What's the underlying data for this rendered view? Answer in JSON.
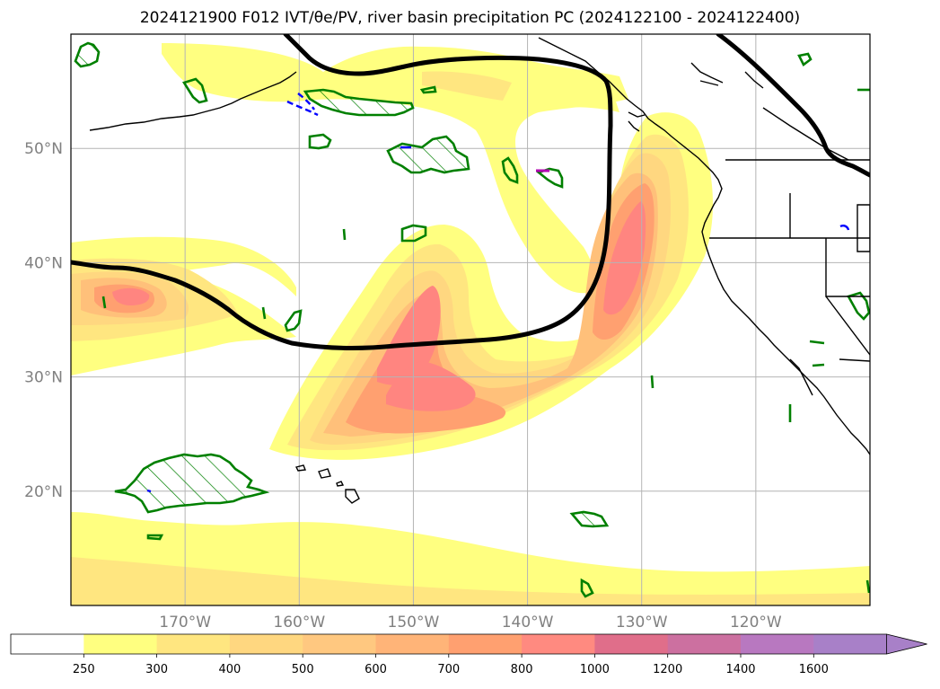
{
  "title": "2024121900 F012 IVT/θe/PV, river basin precipitation PC (2024122100 - 2024122400)",
  "map": {
    "projection": "PlateCarree",
    "lon_range_deg": [
      -180,
      -110
    ],
    "lat_range_deg": [
      10,
      60
    ],
    "background": "#ffffff",
    "gridlines": true,
    "coastlines": true,
    "state_borders": true,
    "lat_ticks": [
      {
        "lat": 20,
        "label": "20°N"
      },
      {
        "lat": 30,
        "label": "30°N"
      },
      {
        "lat": 40,
        "label": "40°N"
      },
      {
        "lat": 50,
        "label": "50°N"
      }
    ],
    "lon_ticks": [
      {
        "lon": -170,
        "label": "170°W"
      },
      {
        "lon": -160,
        "label": "160°W"
      },
      {
        "lon": -150,
        "label": "150°W"
      },
      {
        "lon": -140,
        "label": "140°W"
      },
      {
        "lon": -130,
        "label": "130°W"
      },
      {
        "lon": -120,
        "label": "120°W"
      }
    ],
    "ivt_level_colors": [
      "#ffff80",
      "#ffe680",
      "#ffd780",
      "#ffc07a",
      "#ffa070",
      "#ff8580"
    ],
    "pv_contour_color": "#008000",
    "theta_e_contour_color": "#000000",
    "negative_contour_color": "#0000ff",
    "marker_color": "#b000b0"
  },
  "colorbar": {
    "levels": [
      "250",
      "300",
      "400",
      "500",
      "600",
      "700",
      "800",
      "1000",
      "1200",
      "1400",
      "1600"
    ],
    "colors": [
      "#ffffff",
      "#ffff80",
      "#ffe680",
      "#ffd780",
      "#ffc880",
      "#ffb478",
      "#ffa070",
      "#ff8a80",
      "#e06e8a",
      "#cc70a0",
      "#b878c0",
      "#a880c8"
    ],
    "extend": "max"
  }
}
